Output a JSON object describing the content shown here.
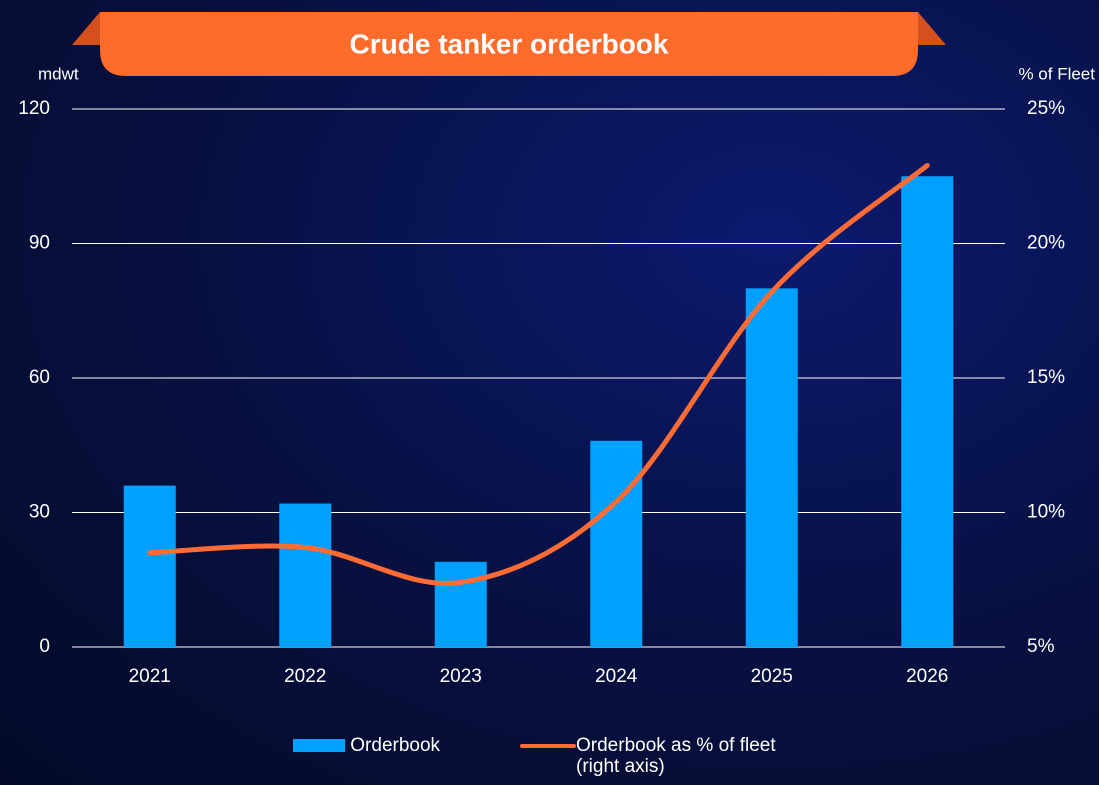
{
  "chart_data": {
    "type": "bar",
    "title": "Crude tanker orderbook",
    "y_label": "mdwt",
    "y2_label": "% of Fleet",
    "categories": [
      "2021",
      "2022",
      "2023",
      "2024",
      "2025",
      "2026"
    ],
    "series": [
      {
        "name": "Orderbook",
        "type": "bar",
        "color": "#00a0ff",
        "values": [
          36,
          32,
          19,
          46,
          80,
          105
        ]
      },
      {
        "name": "Orderbook as % of fleet (right axis)",
        "type": "line",
        "axis": "y2",
        "color": "#ff6b35",
        "values": [
          8.5,
          8.7,
          7.4,
          10.4,
          18.2,
          22.9
        ]
      }
    ],
    "ylim": [
      0,
      120
    ],
    "yticks": [
      0,
      30,
      60,
      90,
      120
    ],
    "y2lim": [
      5,
      25
    ],
    "y2ticks": [
      {
        "value": 5,
        "label": "5%"
      },
      {
        "value": 10,
        "label": "10%"
      },
      {
        "value": 15,
        "label": "15%"
      },
      {
        "value": 20,
        "label": "20%"
      },
      {
        "value": 25,
        "label": "25%"
      }
    ],
    "grid": true
  }
}
